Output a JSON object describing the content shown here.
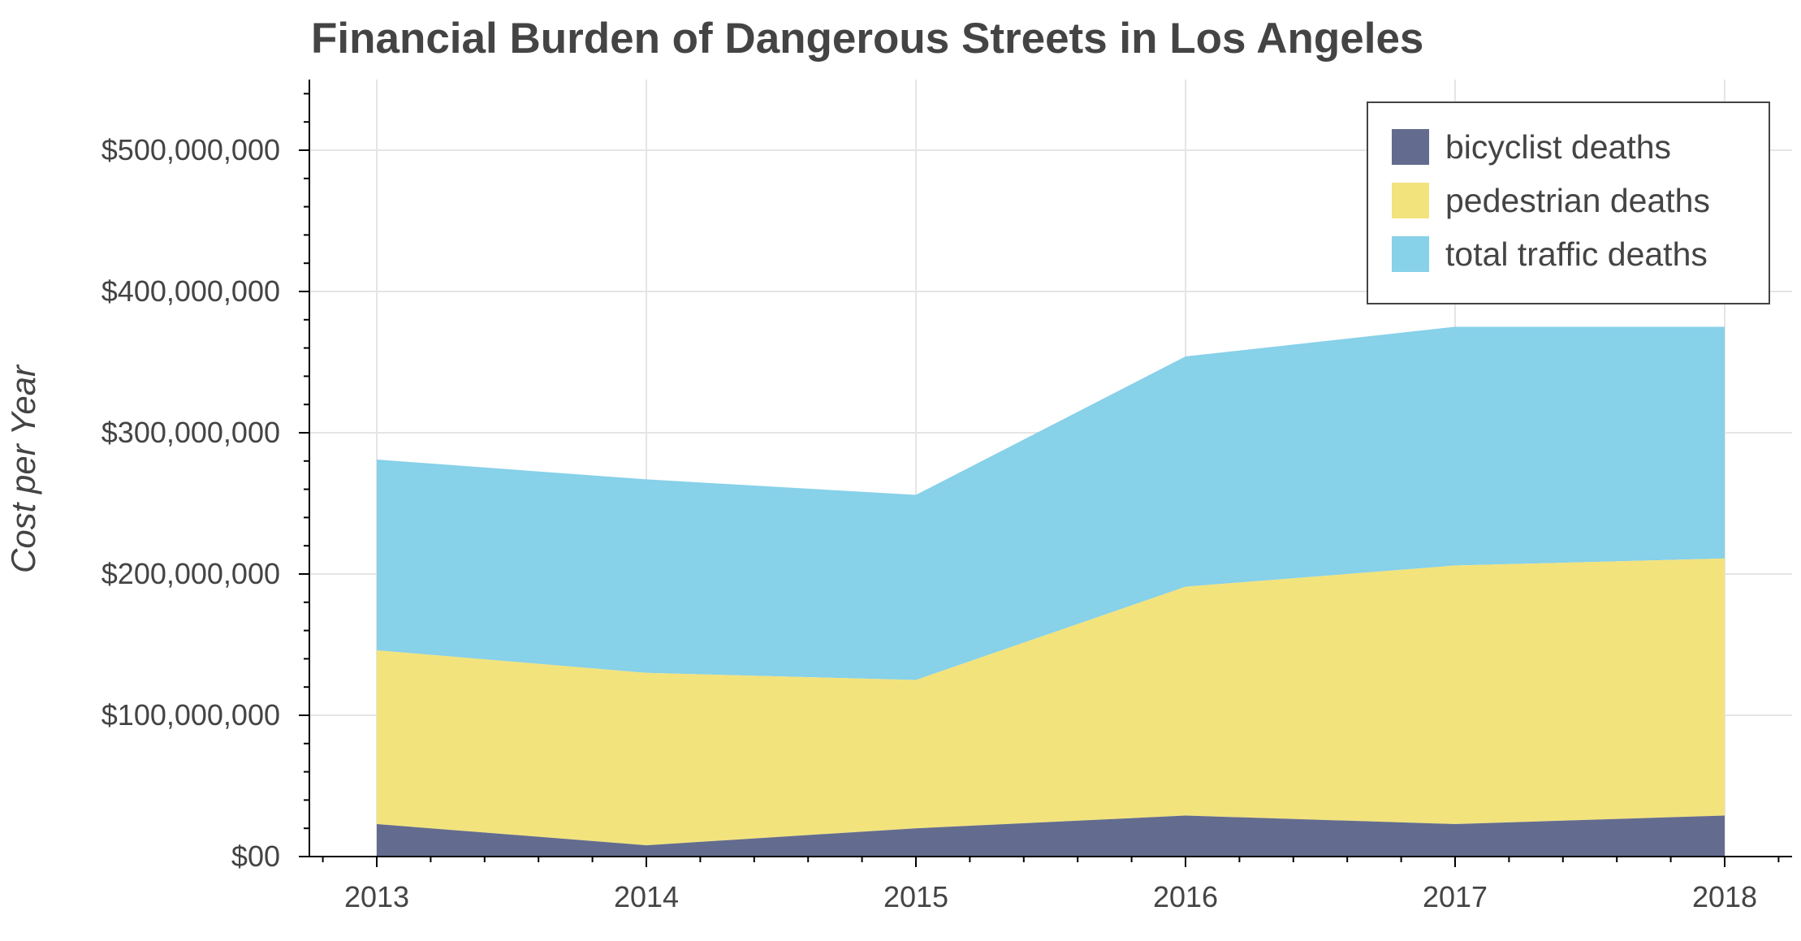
{
  "chart_data": {
    "type": "area",
    "stacked": true,
    "title": "Financial Burden of Dangerous Streets in Los Angeles",
    "xlabel": "",
    "ylabel": "Cost per Year",
    "x": [
      "2013",
      "2014",
      "2015",
      "2016",
      "2017",
      "2018"
    ],
    "xlim": [
      2012.75,
      2018.25
    ],
    "ylim": [
      0,
      550000000
    ],
    "yticks": [
      {
        "value": 0,
        "label": "$00"
      },
      {
        "value": 100000000,
        "label": "$100,000,000"
      },
      {
        "value": 200000000,
        "label": "$200,000,000"
      },
      {
        "value": 300000000,
        "label": "$300,000,000"
      },
      {
        "value": 400000000,
        "label": "$400,000,000"
      },
      {
        "value": 500000000,
        "label": "$500,000,000"
      }
    ],
    "grid": true,
    "legend_position": "top-right",
    "series": [
      {
        "name": "bicyclist deaths",
        "color": "#636c8f",
        "cumulative_top": [
          23000000,
          8000000,
          20000000,
          29000000,
          23000000,
          29000000
        ]
      },
      {
        "name": "pedestrian deaths",
        "color": "#f2e37d",
        "cumulative_top": [
          146000000,
          130000000,
          125000000,
          191000000,
          206000000,
          211000000
        ]
      },
      {
        "name": "total traffic deaths",
        "color": "#87d1e9",
        "cumulative_top": [
          281000000,
          267000000,
          256000000,
          354000000,
          375000000,
          375000000
        ]
      }
    ]
  }
}
